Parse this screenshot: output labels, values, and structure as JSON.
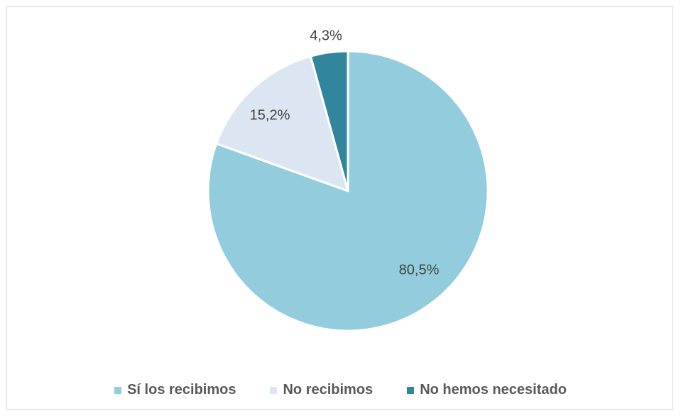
{
  "chart_data": {
    "type": "pie",
    "title": "",
    "categories": [
      "Sí los recibimos",
      "No recibimos",
      "No hemos necesitado"
    ],
    "values": [
      80.5,
      15.2,
      4.3
    ],
    "value_labels": [
      "80,5%",
      "15,2%",
      "4,3%"
    ],
    "colors": [
      "#93cddd",
      "#dce6f2",
      "#31859c"
    ],
    "start_angle": "12 o'clock",
    "direction": "clockwise",
    "legend_position": "bottom"
  }
}
